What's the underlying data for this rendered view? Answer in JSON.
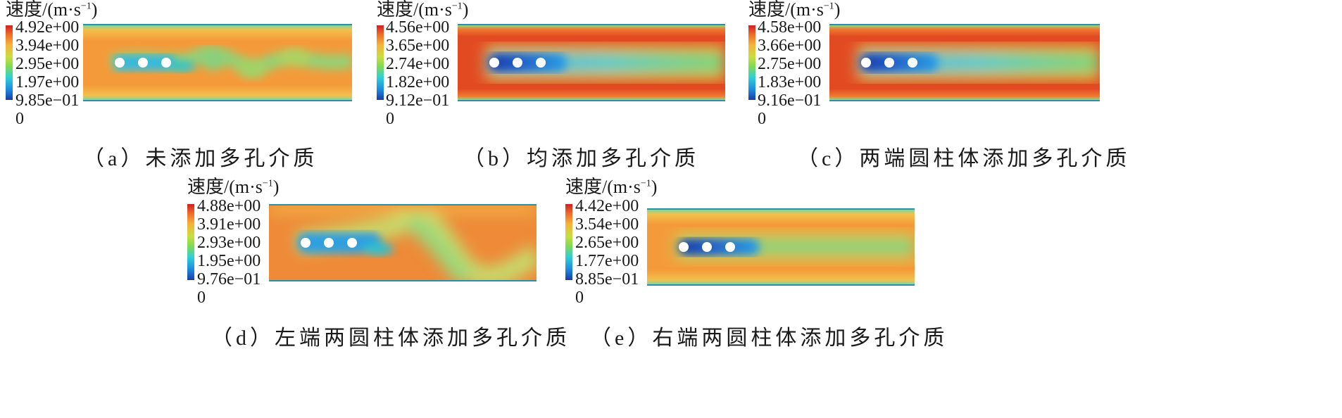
{
  "colorbar_title": {
    "prefix": "速度/(m·s",
    "exponent": "−1",
    "suffix": ")"
  },
  "colorbar_gradient": [
    "#cf1f1f",
    "#ef6a28",
    "#f6b23a",
    "#c9de3f",
    "#7fdc52",
    "#2fcfd6",
    "#1f8fe0",
    "#1a3ca8"
  ],
  "panels": [
    {
      "id": "a",
      "caption": "（a）未添加多孔介质",
      "ticks": [
        "4.92e+00",
        "3.94e+00",
        "2.95e+00",
        "1.97e+00",
        "9.85e−01",
        "0"
      ]
    },
    {
      "id": "b",
      "caption": "（b）均添加多孔介质",
      "ticks": [
        "4.56e+00",
        "3.65e+00",
        "2.74e+00",
        "1.82e+00",
        "9.12e−01",
        "0"
      ]
    },
    {
      "id": "c",
      "caption": "（c）两端圆柱体添加多孔介质",
      "ticks": [
        "4.58e+00",
        "3.66e+00",
        "2.75e+00",
        "1.83e+00",
        "9.16e−01",
        "0"
      ]
    },
    {
      "id": "d",
      "caption": "（d）左端两圆柱体添加多孔介质",
      "ticks": [
        "4.88e+00",
        "3.91e+00",
        "2.93e+00",
        "1.95e+00",
        "9.76e−01",
        "0"
      ]
    },
    {
      "id": "e",
      "caption": "（e）右端两圆柱体添加多孔介质",
      "ticks": [
        "4.42e+00",
        "3.54e+00",
        "2.65e+00",
        "1.77e+00",
        "8.85e−01",
        "0"
      ]
    }
  ]
}
